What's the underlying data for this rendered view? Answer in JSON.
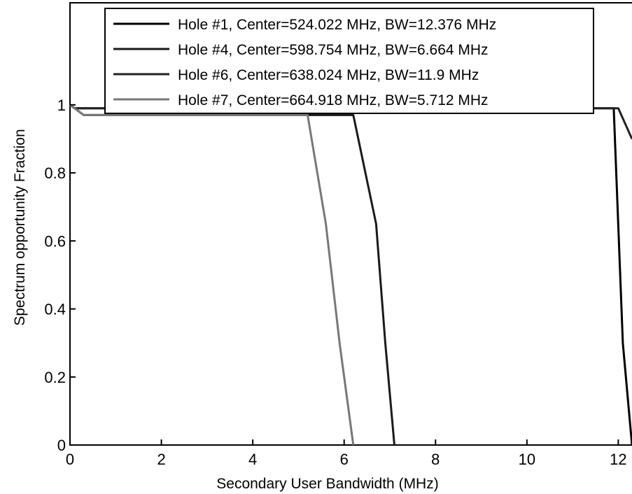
{
  "chart_data": {
    "type": "line",
    "xlabel": "Secondary User Bandwidth (MHz)",
    "ylabel": "Spectrum opportunity Fraction",
    "xlim": [
      0,
      12.3
    ],
    "ylim": [
      0,
      1.3
    ],
    "grid": false,
    "legend_position": "top",
    "x_ticks": [
      0,
      2,
      4,
      6,
      8,
      10,
      12
    ],
    "y_ticks": [
      0,
      0.2,
      0.4,
      0.6,
      0.8,
      1
    ],
    "series": [
      {
        "name": "Hole #1, Center=524.022 MHz, BW=12.376 MHz",
        "color": "#000000",
        "x": [
          0,
          0.1,
          0.2,
          0.5,
          1,
          2,
          4,
          6,
          8,
          10,
          11.5,
          11.9,
          12.1,
          12.3
        ],
        "y": [
          1,
          0.99,
          0.99,
          0.99,
          0.99,
          0.99,
          0.99,
          0.99,
          0.99,
          0.99,
          0.99,
          0.99,
          0.3,
          0
        ]
      },
      {
        "name": "Hole #4, Center=598.754 MHz, BW=6.664 MHz",
        "color": "#1a1a1a",
        "x": [
          0,
          0.3,
          1,
          2,
          4,
          6,
          6.2,
          6.7,
          6.9,
          7.1
        ],
        "y": [
          1,
          0.97,
          0.97,
          0.97,
          0.97,
          0.97,
          0.97,
          0.65,
          0.3,
          0
        ]
      },
      {
        "name": "Hole #6, Center=638.024 MHz, BW=11.9 MHz",
        "color": "#222222",
        "x": [
          0,
          0.1,
          0.5,
          1,
          2,
          4,
          6,
          8,
          10,
          11.8,
          12,
          12.3
        ],
        "y": [
          1,
          0.99,
          0.99,
          0.99,
          0.99,
          0.99,
          0.99,
          0.99,
          0.99,
          0.99,
          0.99,
          0.9
        ]
      },
      {
        "name": "Hole #7, Center=664.918 MHz, BW=5.712 MHz",
        "color": "#777777",
        "x": [
          0,
          0.3,
          1,
          2,
          4,
          5.2,
          5.6,
          5.9,
          6.2
        ],
        "y": [
          1,
          0.97,
          0.97,
          0.97,
          0.97,
          0.97,
          0.65,
          0.3,
          0
        ]
      }
    ]
  }
}
